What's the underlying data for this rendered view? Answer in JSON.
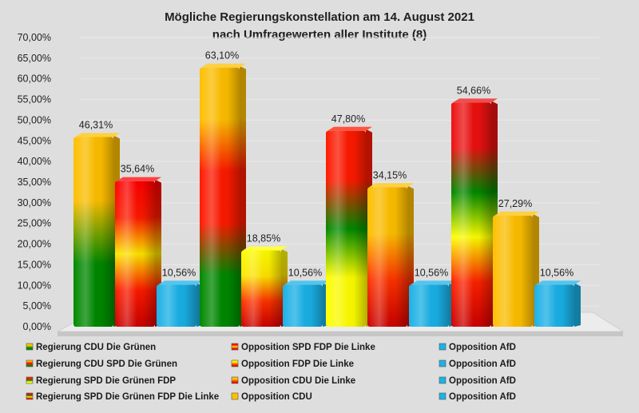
{
  "chart_data": {
    "type": "bar",
    "title_lines": [
      "Mögliche Regierungskonstellation am 14. August 2021",
      "nach Umfragewerten aller Institute (8)"
    ],
    "y_ticks": [
      "70,00%",
      "65,00%",
      "60,00%",
      "55,00%",
      "50,00%",
      "45,00%",
      "40,00%",
      "35,00%",
      "30,00%",
      "25,00%",
      "20,00%",
      "15,00%",
      "10,00%",
      "5,00%",
      "0,00%"
    ],
    "ylim": [
      0,
      70
    ],
    "grid": true,
    "groups": [
      {
        "bars": [
          {
            "name": "Regierung CDU Die Grünen",
            "value": 46.31,
            "label": "46,31%",
            "fill": "cdu-gruene"
          },
          {
            "name": "Opposition SPD FDP Die Linke",
            "value": 35.64,
            "label": "35,64%",
            "fill": "spd-fdp-linke"
          },
          {
            "name": "Opposition AfD",
            "value": 10.56,
            "label": "10,56%",
            "fill": "afd"
          }
        ]
      },
      {
        "bars": [
          {
            "name": "Regierung CDU SPD Die Grünen",
            "value": 63.1,
            "label": "63,10%",
            "fill": "cdu-spd-gruene"
          },
          {
            "name": "Opposition FDP Die Linke",
            "value": 18.85,
            "label": "18,85%",
            "fill": "fdp-linke"
          },
          {
            "name": "Opposition AfD",
            "value": 10.56,
            "label": "10,56%",
            "fill": "afd"
          }
        ]
      },
      {
        "bars": [
          {
            "name": "Regierung SPD Die Grünen FDP",
            "value": 47.8,
            "label": "47,80%",
            "fill": "spd-gruene-fdp"
          },
          {
            "name": "Opposition CDU Die Linke",
            "value": 34.15,
            "label": "34,15%",
            "fill": "cdu-linke"
          },
          {
            "name": "Opposition AfD",
            "value": 10.56,
            "label": "10,56%",
            "fill": "afd"
          }
        ]
      },
      {
        "bars": [
          {
            "name": "Regierung SPD Die Grünen FDP Die Linke",
            "value": 54.66,
            "label": "54,66%",
            "fill": "spd-gruene-fdp-linke"
          },
          {
            "name": "Opposition CDU",
            "value": 27.29,
            "label": "27,29%",
            "fill": "cdu"
          },
          {
            "name": "Opposition AfD",
            "value": 10.56,
            "label": "10,56%",
            "fill": "afd"
          }
        ]
      }
    ],
    "legend": [
      {
        "label": "Regierung CDU Die Grünen",
        "fill": "cdu-gruene"
      },
      {
        "label": "Opposition SPD FDP Die Linke",
        "fill": "spd-fdp-linke"
      },
      {
        "label": "Opposition AfD",
        "fill": "afd"
      },
      {
        "label": "Regierung CDU SPD Die Grünen",
        "fill": "cdu-spd-gruene"
      },
      {
        "label": "Opposition FDP Die Linke",
        "fill": "fdp-linke"
      },
      {
        "label": "Opposition AfD",
        "fill": "afd"
      },
      {
        "label": "Regierung SPD Die Grünen FDP",
        "fill": "spd-gruene-fdp"
      },
      {
        "label": "Opposition CDU Die Linke",
        "fill": "cdu-linke"
      },
      {
        "label": "Opposition AfD",
        "fill": "afd"
      },
      {
        "label": "Regierung SPD Die Grünen FDP Die Linke",
        "fill": "spd-gruene-fdp-linke"
      },
      {
        "label": "Opposition CDU",
        "fill": "cdu"
      },
      {
        "label": "Opposition AfD",
        "fill": "afd"
      }
    ],
    "legend_placement": "bottom",
    "fills": {
      "cdu-gruene": [
        "#ffc000",
        "#ffc000",
        "#008a00",
        "#008a00"
      ],
      "spd-fdp-linke": [
        "#ff0000",
        "#ff1a00",
        "#ffe600",
        "#ff1a00",
        "#cc0000"
      ],
      "afd": [
        "#1ab2e8",
        "#1ab2e8"
      ],
      "cdu-spd-gruene": [
        "#ffc000",
        "#ffc000",
        "#ff1a00",
        "#ff1a00",
        "#008a00",
        "#008a00"
      ],
      "fdp-linke": [
        "#ffff00",
        "#ffe600",
        "#ff3300",
        "#cc0000"
      ],
      "spd-gruene-fdp": [
        "#ff1a00",
        "#ff1a00",
        "#008a00",
        "#ffff00",
        "#ffff00"
      ],
      "cdu-linke": [
        "#ffc000",
        "#ffc000",
        "#ff3300",
        "#cc0000"
      ],
      "spd-gruene-fdp-linke": [
        "#ee1111",
        "#ee1111",
        "#008a00",
        "#ffff00",
        "#ff2200",
        "#cc0000"
      ],
      "cdu": [
        "#ffc000",
        "#ffc000"
      ]
    }
  }
}
